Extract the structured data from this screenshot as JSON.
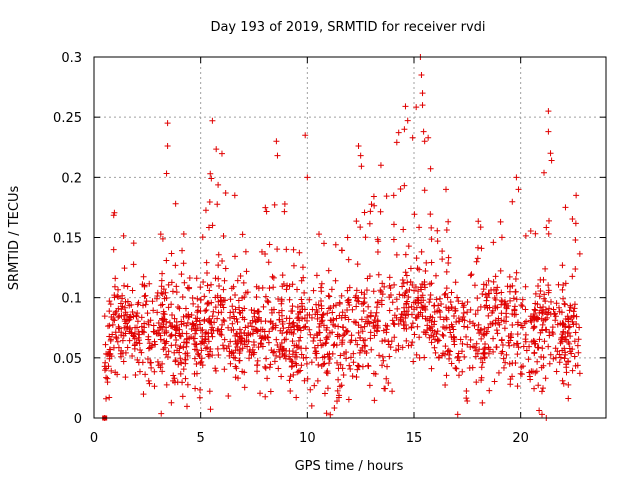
{
  "chart_data": {
    "type": "scatter",
    "title": "Day 193 of 2019, SRMTID for receiver rvdi",
    "xlabel": "GPS time / hours",
    "ylabel": "SRMTID / TECUs",
    "xlim": [
      0,
      24
    ],
    "ylim": [
      0,
      0.3
    ],
    "x_ticks": [
      0,
      5,
      10,
      15,
      20
    ],
    "x_tick_labels": [
      "0",
      "5",
      "10",
      "15",
      "20"
    ],
    "y_ticks": [
      0,
      0.05,
      0.1,
      0.15,
      0.2,
      0.25,
      0.3
    ],
    "y_tick_labels": [
      "0",
      "0.05",
      "0.1",
      "0.15",
      "0.2",
      "0.25",
      "0.3"
    ],
    "grid": true,
    "marker": "plus",
    "series": [
      {
        "name": "SRMTID",
        "color": "#e00000",
        "envelope": [
          {
            "x": 0.5,
            "low": 0.0,
            "high": 0.11
          },
          {
            "x": 1.0,
            "low": 0.03,
            "high": 0.18
          },
          {
            "x": 2.0,
            "low": 0.02,
            "high": 0.15
          },
          {
            "x": 3.0,
            "low": 0.0,
            "high": 0.15
          },
          {
            "x": 3.5,
            "low": 0.01,
            "high": 0.245
          },
          {
            "x": 4.0,
            "low": 0.0,
            "high": 0.16
          },
          {
            "x": 5.0,
            "low": 0.01,
            "high": 0.15
          },
          {
            "x": 5.8,
            "low": 0.0,
            "high": 0.247
          },
          {
            "x": 6.5,
            "low": 0.0,
            "high": 0.185
          },
          {
            "x": 7.5,
            "low": 0.02,
            "high": 0.15
          },
          {
            "x": 8.5,
            "low": 0.01,
            "high": 0.23
          },
          {
            "x": 9.5,
            "low": 0.01,
            "high": 0.15
          },
          {
            "x": 10.0,
            "low": 0.0,
            "high": 0.235
          },
          {
            "x": 11.0,
            "low": 0.0,
            "high": 0.16
          },
          {
            "x": 12.0,
            "low": 0.01,
            "high": 0.17
          },
          {
            "x": 12.5,
            "low": 0.02,
            "high": 0.225
          },
          {
            "x": 13.5,
            "low": 0.0,
            "high": 0.18
          },
          {
            "x": 14.5,
            "low": 0.02,
            "high": 0.26
          },
          {
            "x": 15.3,
            "low": 0.04,
            "high": 0.3
          },
          {
            "x": 16.0,
            "low": 0.02,
            "high": 0.19
          },
          {
            "x": 17.0,
            "low": 0.01,
            "high": 0.18
          },
          {
            "x": 18.0,
            "low": 0.01,
            "high": 0.17
          },
          {
            "x": 19.0,
            "low": 0.02,
            "high": 0.2
          },
          {
            "x": 20.0,
            "low": 0.0,
            "high": 0.17
          },
          {
            "x": 21.0,
            "low": 0.0,
            "high": 0.2
          },
          {
            "x": 21.5,
            "low": 0.0,
            "high": 0.255
          },
          {
            "x": 22.0,
            "low": 0.01,
            "high": 0.175
          },
          {
            "x": 22.8,
            "low": 0.02,
            "high": 0.16
          }
        ],
        "typical_range": [
          0.02,
          0.12
        ],
        "point_count": 1800,
        "outliers": [
          {
            "x": 0.5,
            "y": 0.0
          },
          {
            "x": 3.45,
            "y": 0.245
          },
          {
            "x": 3.45,
            "y": 0.226
          },
          {
            "x": 5.55,
            "y": 0.247
          },
          {
            "x": 5.45,
            "y": 0.203
          },
          {
            "x": 5.5,
            "y": 0.199
          },
          {
            "x": 6.6,
            "y": 0.185
          },
          {
            "x": 8.55,
            "y": 0.23
          },
          {
            "x": 8.6,
            "y": 0.218
          },
          {
            "x": 9.9,
            "y": 0.235
          },
          {
            "x": 10.0,
            "y": 0.2
          },
          {
            "x": 12.4,
            "y": 0.226
          },
          {
            "x": 12.5,
            "y": 0.218
          },
          {
            "x": 13.45,
            "y": 0.21
          },
          {
            "x": 14.05,
            "y": 0.185
          },
          {
            "x": 14.6,
            "y": 0.259
          },
          {
            "x": 14.55,
            "y": 0.24
          },
          {
            "x": 15.3,
            "y": 0.3
          },
          {
            "x": 15.35,
            "y": 0.285
          },
          {
            "x": 15.4,
            "y": 0.27
          },
          {
            "x": 15.4,
            "y": 0.26
          },
          {
            "x": 15.45,
            "y": 0.238
          },
          {
            "x": 15.5,
            "y": 0.23
          },
          {
            "x": 16.5,
            "y": 0.19
          },
          {
            "x": 17.05,
            "y": 0.003
          },
          {
            "x": 19.8,
            "y": 0.2
          },
          {
            "x": 19.9,
            "y": 0.19
          },
          {
            "x": 21.3,
            "y": 0.255
          },
          {
            "x": 21.3,
            "y": 0.238
          },
          {
            "x": 21.4,
            "y": 0.22
          },
          {
            "x": 21.45,
            "y": 0.214
          },
          {
            "x": 22.1,
            "y": 0.175
          },
          {
            "x": 22.6,
            "y": 0.185
          },
          {
            "x": 21.0,
            "y": 0.003
          },
          {
            "x": 21.2,
            "y": 0.0
          }
        ]
      }
    ]
  }
}
